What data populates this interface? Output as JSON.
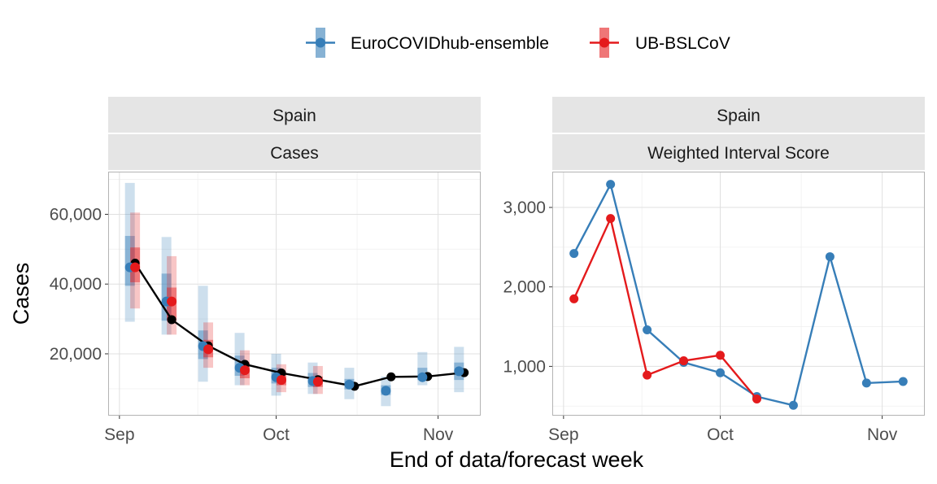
{
  "legend": {
    "position": "top",
    "items": [
      {
        "label": "EuroCOVIDhub-ensemble",
        "color": "#377EB8"
      },
      {
        "label": "UB-BSLCoV",
        "color": "#E41A1C"
      }
    ]
  },
  "axes": {
    "x_title": "End of data/forecast week",
    "y_title": "Cases"
  },
  "chart_data": [
    {
      "type": "line",
      "facet_top": "Spain",
      "facet_bottom": "Cases",
      "x_ticks": [
        "Sep",
        "Oct",
        "Nov"
      ],
      "x_tick_dates": [
        "2021-09-01",
        "2021-10-01",
        "2021-11-01"
      ],
      "xlim": [
        "2021-08-30",
        "2021-11-09"
      ],
      "y_ticks": [
        20000,
        40000,
        60000
      ],
      "y_tick_labels": [
        "20,000",
        "40,000",
        "60,000"
      ],
      "ylim": [
        2500,
        72000
      ],
      "observed": {
        "color": "#000000",
        "points": [
          {
            "date": "2021-09-04",
            "value": 46000
          },
          {
            "date": "2021-09-11",
            "value": 29800
          },
          {
            "date": "2021-09-18",
            "value": 22300
          },
          {
            "date": "2021-09-25",
            "value": 17000
          },
          {
            "date": "2021-10-02",
            "value": 14500
          },
          {
            "date": "2021-10-09",
            "value": 12600
          },
          {
            "date": "2021-10-16",
            "value": 10700
          },
          {
            "date": "2021-10-23",
            "value": 13400
          },
          {
            "date": "2021-10-30",
            "value": 13500
          },
          {
            "date": "2021-11-06",
            "value": 14600
          }
        ]
      },
      "series": [
        {
          "name": "EuroCOVIDhub-ensemble",
          "color": "#377EB8",
          "points": [
            {
              "date": "2021-09-03",
              "median": 44800,
              "outer": [
                29200,
                69000
              ],
              "inner": [
                39500,
                53800
              ]
            },
            {
              "date": "2021-09-10",
              "median": 35000,
              "outer": [
                25500,
                53500
              ],
              "inner": [
                29500,
                43000
              ]
            },
            {
              "date": "2021-09-17",
              "median": 22200,
              "outer": [
                12000,
                39500
              ],
              "inner": [
                18500,
                26700
              ]
            },
            {
              "date": "2021-09-24",
              "median": 16000,
              "outer": [
                11000,
                26000
              ],
              "inner": [
                13700,
                19500
              ]
            },
            {
              "date": "2021-10-01",
              "median": 13300,
              "outer": [
                8000,
                20000
              ],
              "inner": [
                11500,
                16000
              ]
            },
            {
              "date": "2021-10-08",
              "median": 12200,
              "outer": [
                8500,
                17500
              ],
              "inner": [
                10500,
                14500
              ]
            },
            {
              "date": "2021-10-15",
              "median": 11200,
              "outer": [
                7000,
                16000
              ],
              "inner": [
                9800,
                12800
              ]
            },
            {
              "date": "2021-10-22",
              "median": 9400,
              "outer": [
                5000,
                13500
              ],
              "inner": [
                8200,
                11000
              ]
            },
            {
              "date": "2021-10-29",
              "median": 13300,
              "outer": [
                11000,
                20500
              ],
              "inner": [
                12500,
                16000
              ]
            },
            {
              "date": "2021-11-05",
              "median": 15000,
              "outer": [
                9000,
                22000
              ],
              "inner": [
                12500,
                17500
              ]
            }
          ]
        },
        {
          "name": "UB-BSLCoV",
          "color": "#E41A1C",
          "points": [
            {
              "date": "2021-09-04",
              "median": 44800,
              "outer": [
                33000,
                60500
              ],
              "inner": [
                40500,
                50500
              ]
            },
            {
              "date": "2021-09-11",
              "median": 35000,
              "outer": [
                25500,
                48000
              ],
              "inner": [
                29500,
                39000
              ]
            },
            {
              "date": "2021-09-18",
              "median": 21300,
              "outer": [
                16000,
                29000
              ],
              "inner": [
                19000,
                24000
              ]
            },
            {
              "date": "2021-09-25",
              "median": 15300,
              "outer": [
                11000,
                21000
              ],
              "inner": [
                13000,
                17500
              ]
            },
            {
              "date": "2021-10-02",
              "median": 12500,
              "outer": [
                9000,
                17000
              ],
              "inner": [
                11000,
                14000
              ]
            },
            {
              "date": "2021-10-09",
              "median": 12000,
              "outer": [
                8500,
                16500
              ],
              "inner": [
                10500,
                13500
              ]
            }
          ]
        }
      ]
    },
    {
      "type": "line",
      "facet_top": "Spain",
      "facet_bottom": "Weighted Interval Score",
      "x_ticks": [
        "Sep",
        "Oct",
        "Nov"
      ],
      "x_tick_dates": [
        "2021-09-01",
        "2021-10-01",
        "2021-11-01"
      ],
      "xlim": [
        "2021-08-30",
        "2021-11-09"
      ],
      "y_ticks": [
        1000,
        2000,
        3000
      ],
      "y_tick_labels": [
        "1,000",
        "2,000",
        "3,000"
      ],
      "ylim": [
        390,
        3440
      ],
      "series": [
        {
          "name": "EuroCOVIDhub-ensemble",
          "color": "#377EB8",
          "points": [
            {
              "date": "2021-09-03",
              "value": 2420
            },
            {
              "date": "2021-09-10",
              "value": 3290
            },
            {
              "date": "2021-09-17",
              "value": 1460
            },
            {
              "date": "2021-09-24",
              "value": 1050
            },
            {
              "date": "2021-10-01",
              "value": 920
            },
            {
              "date": "2021-10-08",
              "value": 620
            },
            {
              "date": "2021-10-15",
              "value": 510
            },
            {
              "date": "2021-10-22",
              "value": 2380
            },
            {
              "date": "2021-10-29",
              "value": 790
            },
            {
              "date": "2021-11-05",
              "value": 810
            }
          ]
        },
        {
          "name": "UB-BSLCoV",
          "color": "#E41A1C",
          "points": [
            {
              "date": "2021-09-03",
              "value": 1850
            },
            {
              "date": "2021-09-10",
              "value": 2860
            },
            {
              "date": "2021-09-17",
              "value": 890
            },
            {
              "date": "2021-09-24",
              "value": 1070
            },
            {
              "date": "2021-10-01",
              "value": 1140
            },
            {
              "date": "2021-10-08",
              "value": 590
            }
          ]
        }
      ]
    }
  ]
}
